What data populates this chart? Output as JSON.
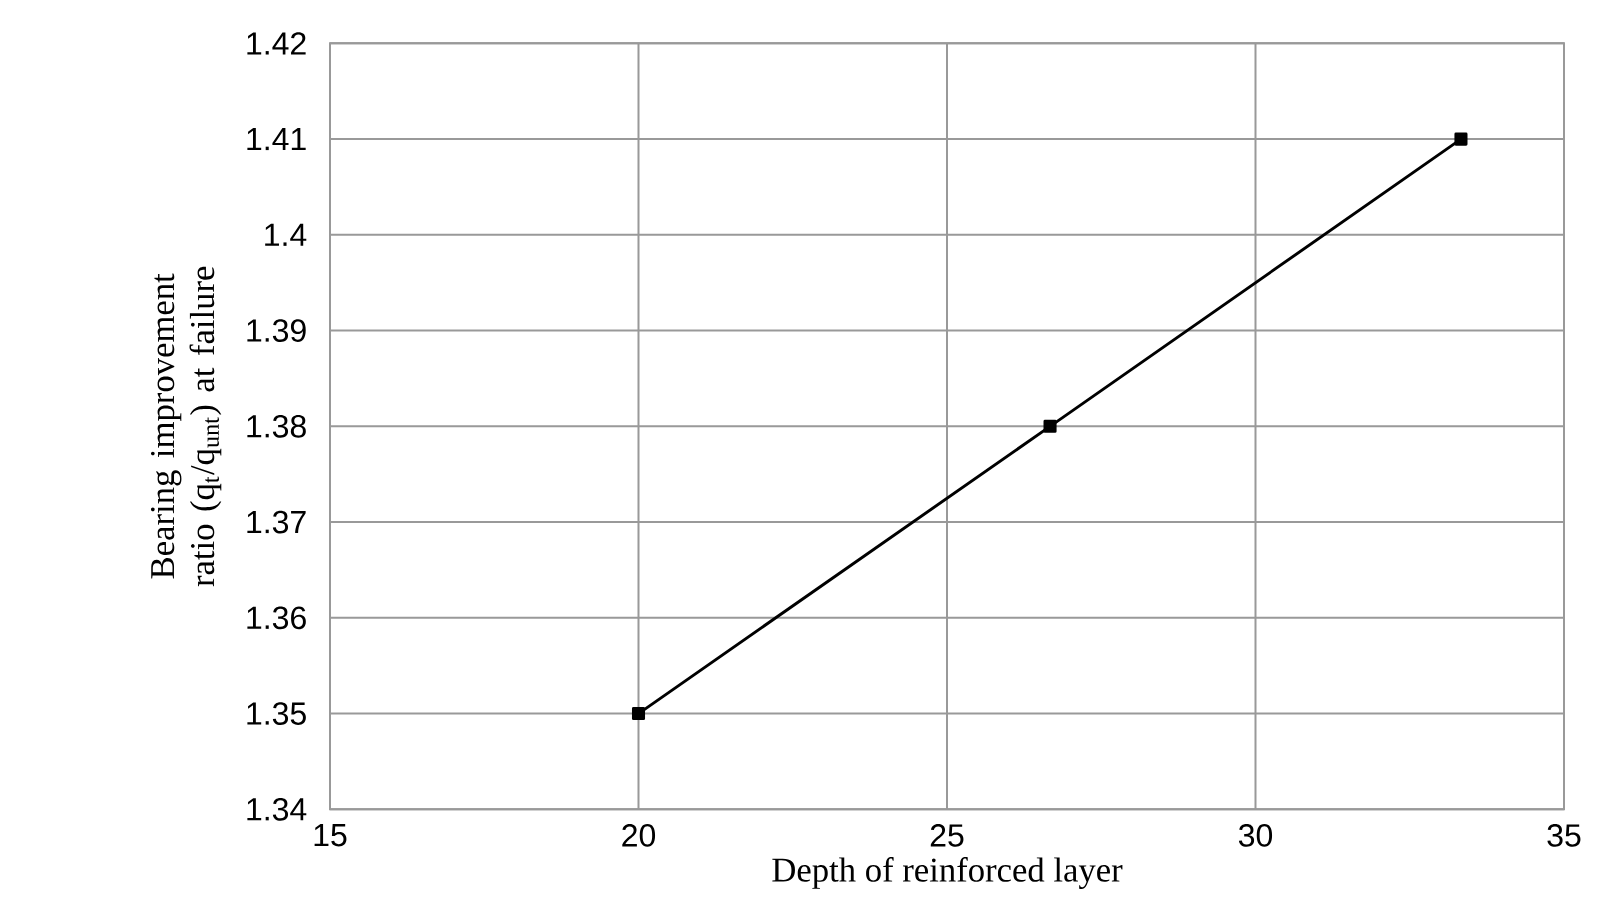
{
  "chart_data": {
    "type": "line",
    "xlabel": "Depth of reinforced layer",
    "ylabel": "Bearing improvement ratio (q$_{t}$/q$_{unt}$) at failure",
    "x": [
      20,
      26.67,
      33.33
    ],
    "series": [
      {
        "color": "#000000",
        "values": [
          1.35,
          1.38,
          1.41
        ]
      }
    ],
    "xlim": [
      15,
      35
    ],
    "xticks": [
      15,
      20,
      25,
      30,
      35
    ],
    "ylim": [
      1.34,
      1.42
    ],
    "yticks": [
      1.34,
      1.35,
      1.36,
      1.37,
      1.38,
      1.39,
      1.4,
      1.41,
      1.42
    ],
    "grid": true,
    "marker": "square",
    "line_style": "solid"
  }
}
